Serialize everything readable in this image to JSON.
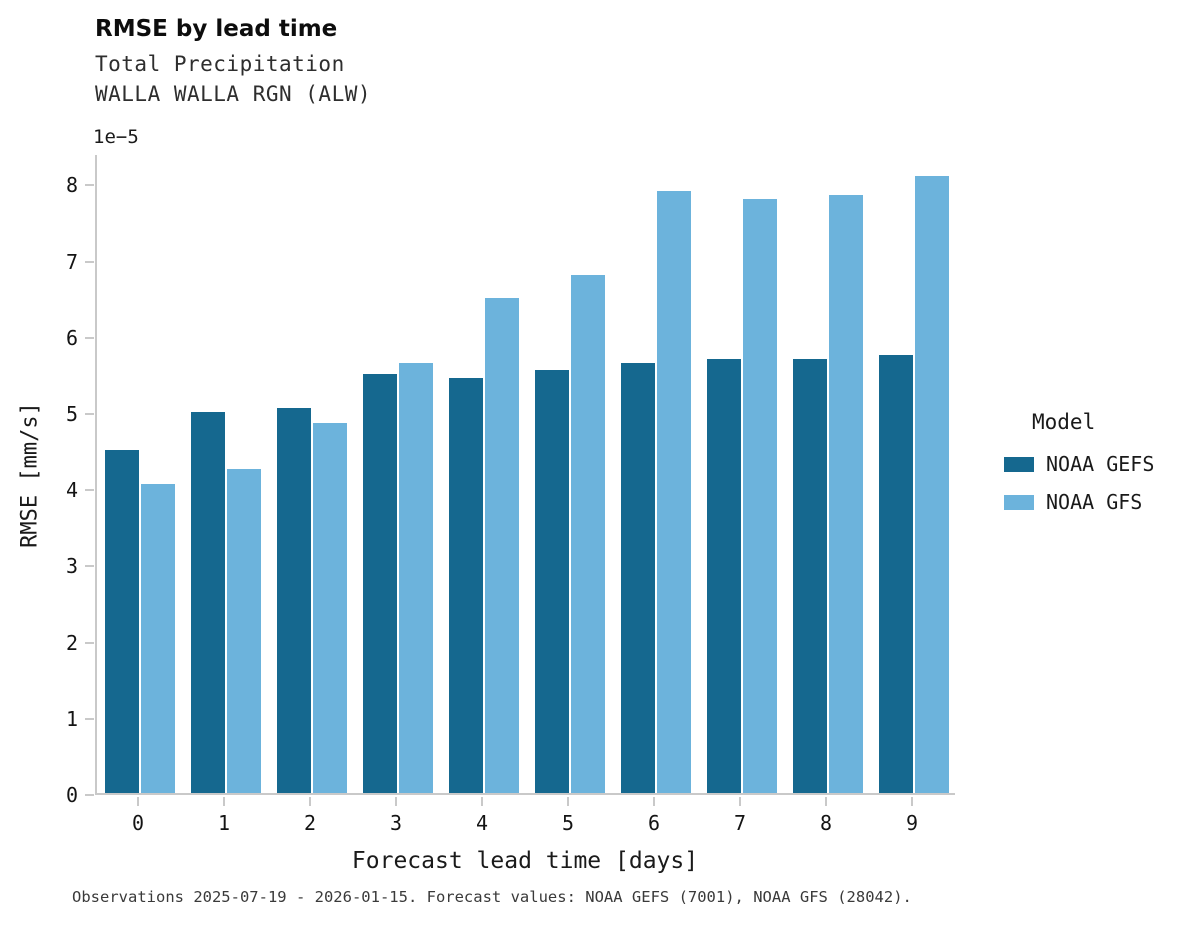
{
  "header": {
    "title": "RMSE by lead time",
    "subtitle_line1": "Total Precipitation",
    "subtitle_line2": "WALLA WALLA RGN (ALW)"
  },
  "chart_data": {
    "type": "bar",
    "title": "RMSE by lead time",
    "subtitle": [
      "Total Precipitation",
      "WALLA WALLA RGN (ALW)"
    ],
    "categories": [
      "0",
      "1",
      "2",
      "3",
      "4",
      "5",
      "6",
      "7",
      "8",
      "9"
    ],
    "series": [
      {
        "name": "NOAA GEFS",
        "color": "#15688f",
        "values": [
          4.5,
          5.0,
          5.05,
          5.5,
          5.45,
          5.55,
          5.65,
          5.7,
          5.7,
          5.75
        ]
      },
      {
        "name": "NOAA GFS",
        "color": "#6cb3dc",
        "values": [
          4.05,
          4.25,
          4.85,
          5.65,
          6.5,
          6.8,
          7.9,
          7.8,
          7.85,
          8.1
        ]
      }
    ],
    "value_scale": "1e-5",
    "y_offset_label": "1e−5",
    "xlabel": "Forecast lead time [days]",
    "ylabel": "RMSE [mm/s]",
    "ylim": [
      0,
      8.4
    ],
    "yticks": [
      0,
      1,
      2,
      3,
      4,
      5,
      6,
      7,
      8
    ],
    "grid": false,
    "legend_position": "right",
    "legend_title": "Model"
  },
  "legend": {
    "title": "Model",
    "entries": [
      "NOAA GEFS",
      "NOAA GFS"
    ]
  },
  "footer": {
    "note": "Observations 2025-07-19 - 2026-01-15. Forecast values: NOAA GEFS (7001), NOAA GFS (28042)."
  }
}
